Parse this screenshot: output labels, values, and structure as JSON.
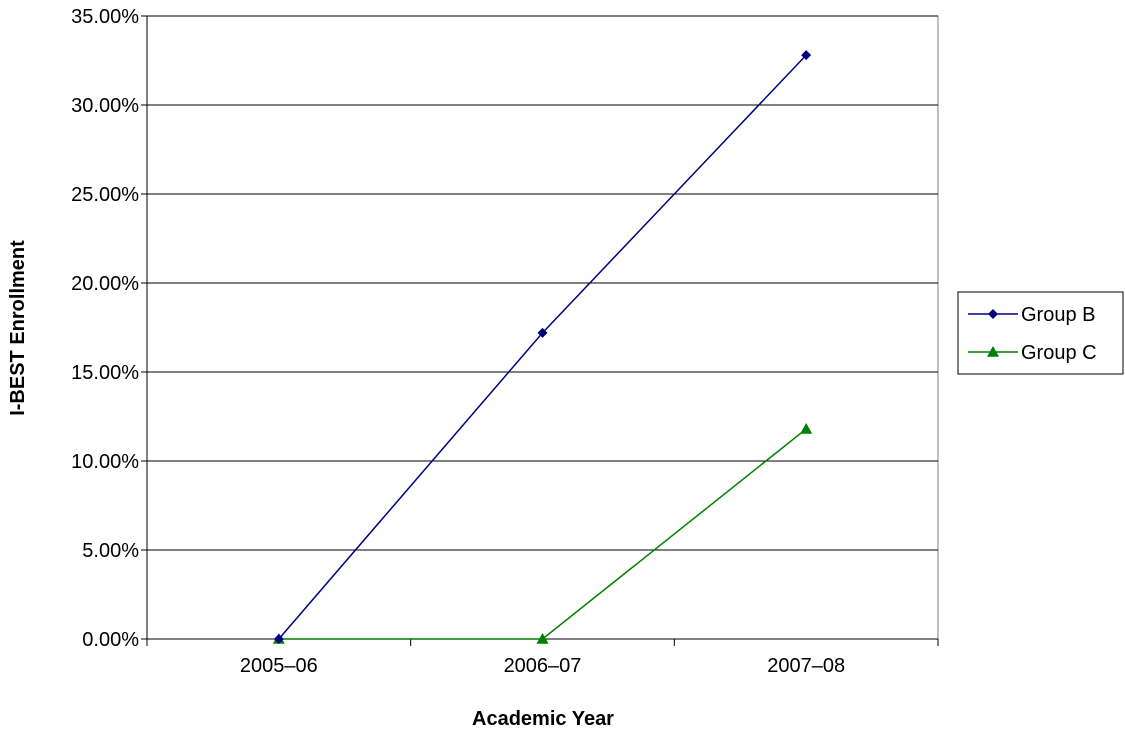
{
  "chart_data": {
    "type": "line",
    "title": "",
    "xlabel": "Academic Year",
    "ylabel": "I-BEST Enrollment",
    "categories": [
      "2005–06",
      "2006–07",
      "2007–08"
    ],
    "ylim": [
      0,
      35
    ],
    "yticks": [
      0,
      5,
      10,
      15,
      20,
      25,
      30,
      35
    ],
    "ytick_labels": [
      "0.00%",
      "5.00%",
      "10.00%",
      "15.00%",
      "20.00%",
      "25.00%",
      "30.00%",
      "35.00%"
    ],
    "grid": true,
    "legend_position": "right",
    "series": [
      {
        "name": "Group B",
        "values": [
          0.0,
          17.2,
          32.8
        ],
        "color": "#000080",
        "marker": "diamond"
      },
      {
        "name": "Group C",
        "values": [
          0.0,
          0.0,
          11.8
        ],
        "color": "#008000",
        "marker": "triangle"
      }
    ]
  }
}
